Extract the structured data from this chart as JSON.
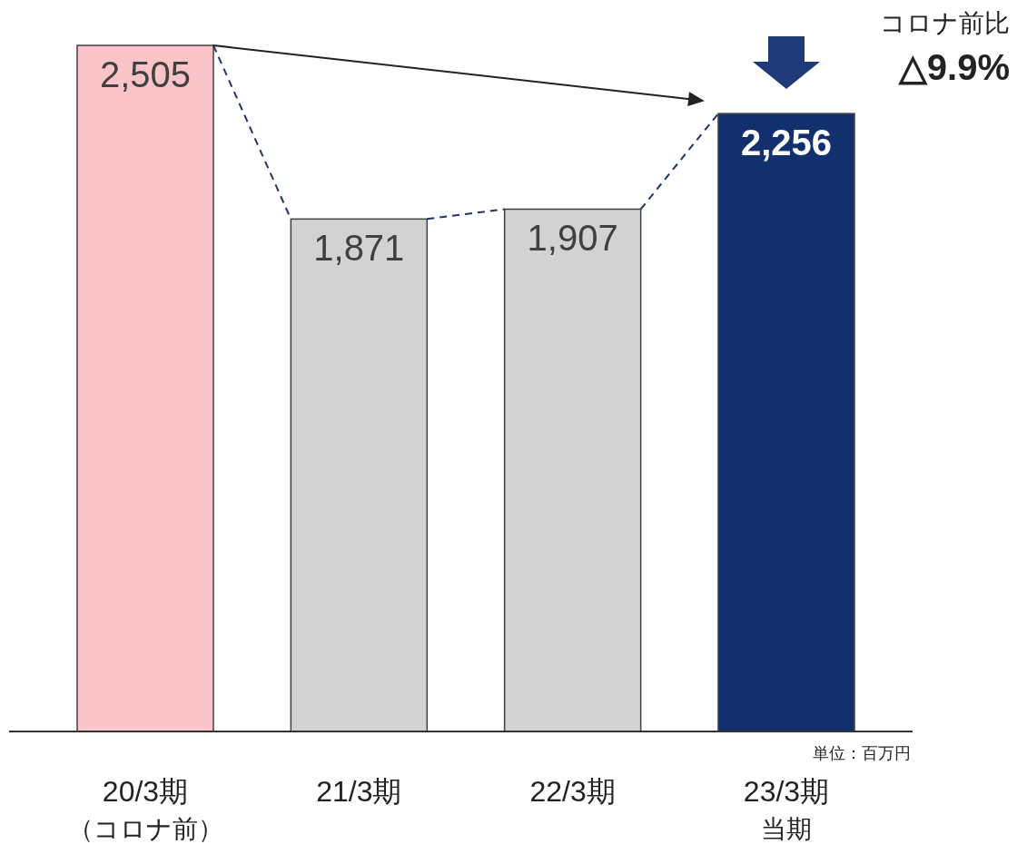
{
  "chart_data": {
    "type": "bar",
    "categories": [
      "20/3期（コロナ前）",
      "21/3期",
      "22/3期",
      "23/3期当期"
    ],
    "values": [
      2505,
      1871,
      1907,
      2256
    ],
    "colors": [
      "#fbc4c8",
      "#d2d2d2",
      "#d2d2d2",
      "#13306e"
    ],
    "value_labels": [
      "2,505",
      "1,871",
      "1,907",
      "2,256"
    ],
    "annotations": [
      "コロナ前比",
      "△9.9%",
      "単位：百万円"
    ]
  }
}
